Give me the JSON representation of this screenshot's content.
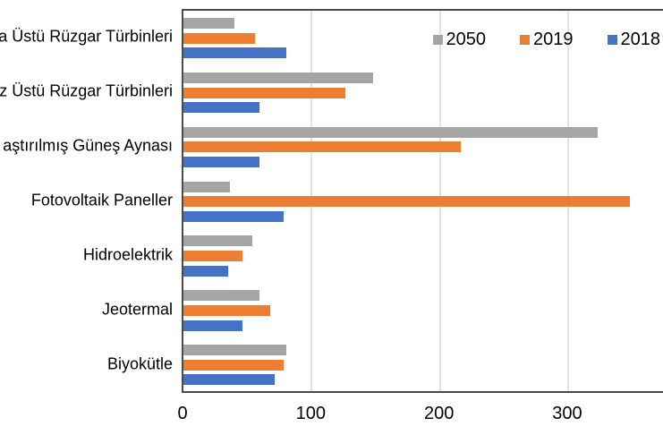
{
  "chart_data": {
    "type": "bar",
    "orientation": "horizontal",
    "title": "",
    "xlabel": "",
    "ylabel": "",
    "categories": [
      "a Üstü Rüzgar Türbinleri",
      "z Üstü Rüzgar Türbinleri",
      "aştırılmış Güneş Aynası",
      "Fotovoltaik Paneller",
      "Hidroelektrik",
      "Jeotermal",
      "Biyokütle"
    ],
    "series": [
      {
        "name": "2050",
        "color": "#A5A5A5",
        "values": [
          40,
          148,
          323,
          36,
          54,
          59,
          80
        ]
      },
      {
        "name": "2019",
        "color": "#ED7D31",
        "values": [
          56,
          126,
          216,
          348,
          46,
          68,
          78
        ]
      },
      {
        "name": "2018",
        "color": "#4472C4",
        "values": [
          80,
          59,
          59,
          78,
          35,
          46,
          71
        ]
      }
    ],
    "x_ticks": [
      0,
      100,
      200,
      300
    ],
    "xlim": [
      0,
      375
    ],
    "grid": "vertical",
    "legend_position": "top-right"
  },
  "colors": {
    "background": "#ffffff",
    "gridline": "#dce6f2",
    "axis": "#4a4a4a",
    "text": "#000000"
  }
}
